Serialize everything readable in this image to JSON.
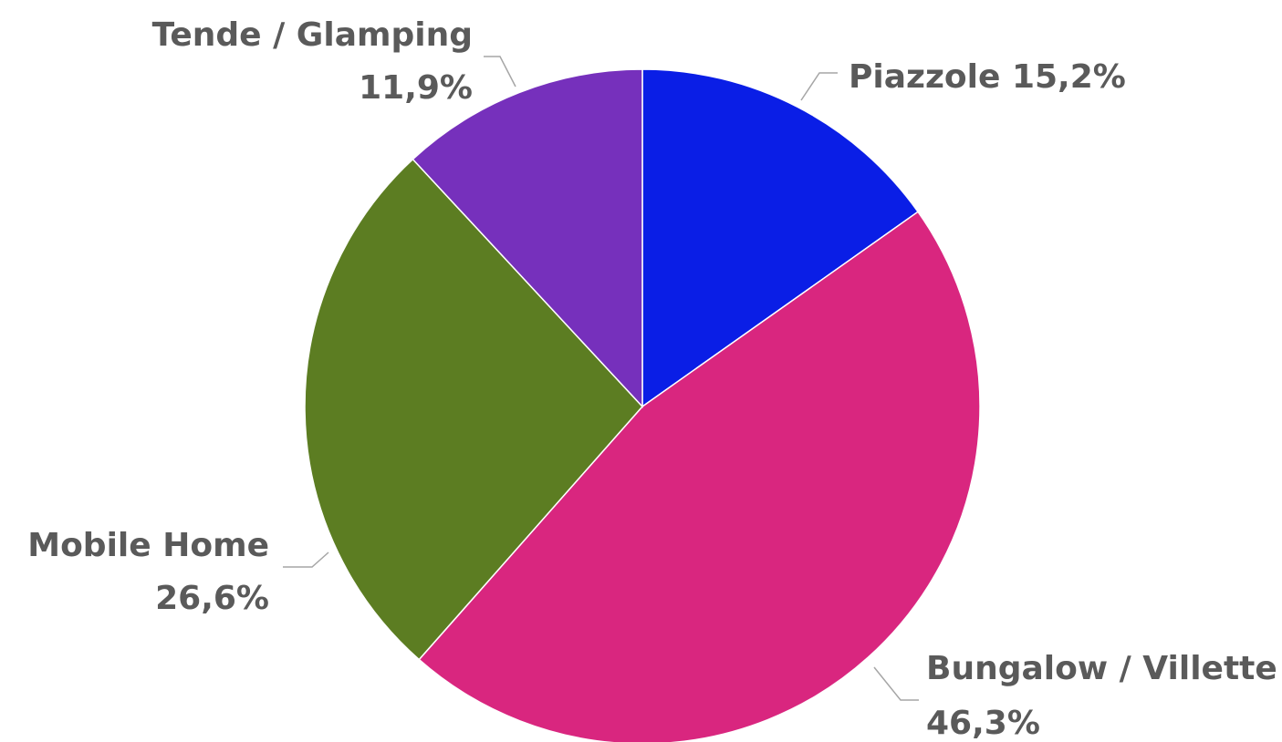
{
  "chart_data": {
    "type": "pie",
    "title": "",
    "start_angle_deg": 0,
    "direction": "clockwise",
    "legend": "none",
    "slices": [
      {
        "name": "Piazzole",
        "value": 15.2,
        "label_line1": "Piazzole 15,2%",
        "label_line2": "",
        "color": "#0a1ee6"
      },
      {
        "name": "Bungalow / Villette",
        "value": 46.3,
        "label_line1": "Bungalow / Villette",
        "label_line2": "46,3%",
        "color": "#d9267f"
      },
      {
        "name": "Mobile Home",
        "value": 26.6,
        "label_line1": "Mobile Home",
        "label_line2": "26,6%",
        "color": "#5c7d22"
      },
      {
        "name": "Tende / Glamping",
        "value": 11.9,
        "label_line1": "Tende / Glamping",
        "label_line2": "11,9%",
        "color": "#7630bc"
      }
    ]
  }
}
